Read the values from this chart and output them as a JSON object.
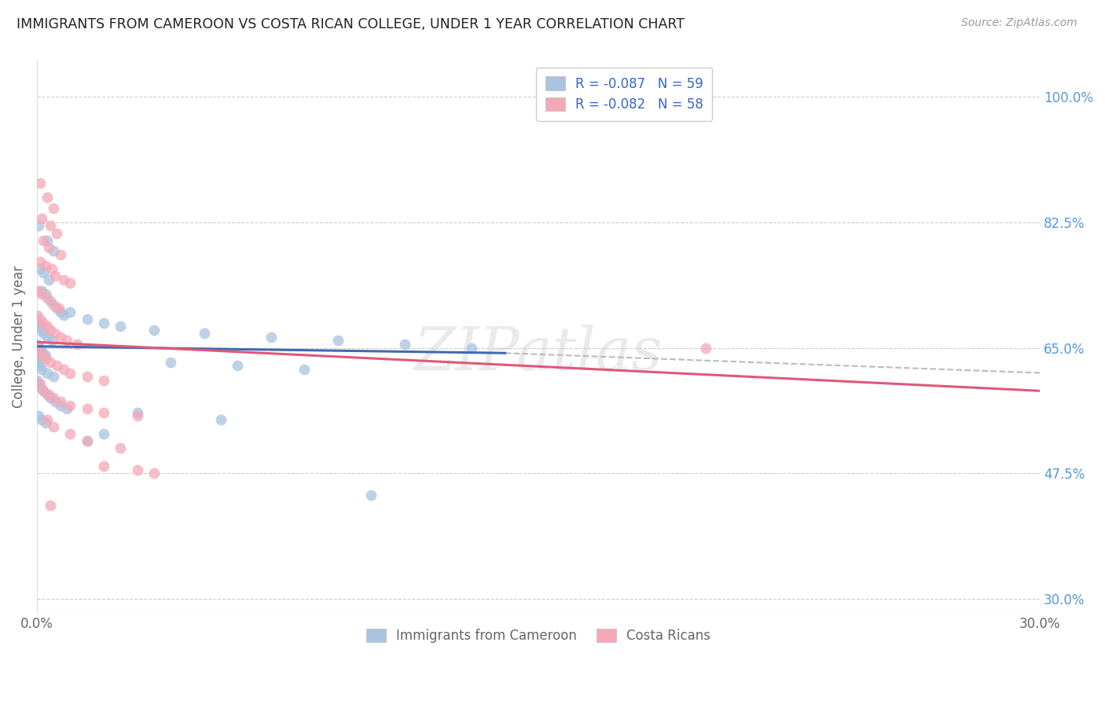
{
  "title": "IMMIGRANTS FROM CAMEROON VS COSTA RICAN COLLEGE, UNDER 1 YEAR CORRELATION CHART",
  "source": "Source: ZipAtlas.com",
  "ylabel": "College, Under 1 year",
  "right_yticks": [
    100.0,
    82.5,
    65.0,
    47.5,
    30.0
  ],
  "xlim": [
    0.0,
    30.0
  ],
  "ylim": [
    28.0,
    105.0
  ],
  "legend1_label": "R = -0.087   N = 59",
  "legend2_label": "R = -0.082   N = 58",
  "legend_bottom_label1": "Immigrants from Cameroon",
  "legend_bottom_label2": "Costa Ricans",
  "blue_color": "#a8c4e0",
  "pink_color": "#f4a8b8",
  "blue_line_color": "#4169b0",
  "pink_line_color": "#e05878",
  "trend_line_color": "#bbbbbb",
  "blue_scatter": [
    [
      0.05,
      82.0
    ],
    [
      0.3,
      80.0
    ],
    [
      0.5,
      78.5
    ],
    [
      0.1,
      76.0
    ],
    [
      0.2,
      75.5
    ],
    [
      0.35,
      74.5
    ],
    [
      0.15,
      73.0
    ],
    [
      0.25,
      72.5
    ],
    [
      0.4,
      71.5
    ],
    [
      0.6,
      70.5
    ],
    [
      0.7,
      70.0
    ],
    [
      0.8,
      69.5
    ],
    [
      0.05,
      68.5
    ],
    [
      0.1,
      68.0
    ],
    [
      0.15,
      67.5
    ],
    [
      0.2,
      67.0
    ],
    [
      0.3,
      66.5
    ],
    [
      0.45,
      66.0
    ],
    [
      0.0,
      65.5
    ],
    [
      0.05,
      65.0
    ],
    [
      0.1,
      65.0
    ],
    [
      0.15,
      64.5
    ],
    [
      0.2,
      64.0
    ],
    [
      0.25,
      64.0
    ],
    [
      0.0,
      63.5
    ],
    [
      0.05,
      63.0
    ],
    [
      0.1,
      62.5
    ],
    [
      0.15,
      62.0
    ],
    [
      0.3,
      61.5
    ],
    [
      0.5,
      61.0
    ],
    [
      0.0,
      60.5
    ],
    [
      0.05,
      60.0
    ],
    [
      0.1,
      59.5
    ],
    [
      0.2,
      59.0
    ],
    [
      0.3,
      58.5
    ],
    [
      0.4,
      58.0
    ],
    [
      0.55,
      57.5
    ],
    [
      0.7,
      57.0
    ],
    [
      0.9,
      56.5
    ],
    [
      0.05,
      55.5
    ],
    [
      0.15,
      55.0
    ],
    [
      0.25,
      54.5
    ],
    [
      1.0,
      70.0
    ],
    [
      1.5,
      69.0
    ],
    [
      2.0,
      68.5
    ],
    [
      2.5,
      68.0
    ],
    [
      3.5,
      67.5
    ],
    [
      5.0,
      67.0
    ],
    [
      7.0,
      66.5
    ],
    [
      9.0,
      66.0
    ],
    [
      11.0,
      65.5
    ],
    [
      13.0,
      65.0
    ],
    [
      4.0,
      63.0
    ],
    [
      6.0,
      62.5
    ],
    [
      8.0,
      62.0
    ],
    [
      3.0,
      56.0
    ],
    [
      5.5,
      55.0
    ],
    [
      10.0,
      44.5
    ],
    [
      2.0,
      53.0
    ],
    [
      1.5,
      52.0
    ]
  ],
  "pink_scatter": [
    [
      0.1,
      88.0
    ],
    [
      0.3,
      86.0
    ],
    [
      0.5,
      84.5
    ],
    [
      0.15,
      83.0
    ],
    [
      0.4,
      82.0
    ],
    [
      0.6,
      81.0
    ],
    [
      0.2,
      80.0
    ],
    [
      0.35,
      79.0
    ],
    [
      0.7,
      78.0
    ],
    [
      0.1,
      77.0
    ],
    [
      0.25,
      76.5
    ],
    [
      0.45,
      76.0
    ],
    [
      0.55,
      75.0
    ],
    [
      0.8,
      74.5
    ],
    [
      1.0,
      74.0
    ],
    [
      0.05,
      73.0
    ],
    [
      0.15,
      72.5
    ],
    [
      0.3,
      72.0
    ],
    [
      0.5,
      71.0
    ],
    [
      0.65,
      70.5
    ],
    [
      0.0,
      69.5
    ],
    [
      0.1,
      69.0
    ],
    [
      0.2,
      68.5
    ],
    [
      0.3,
      68.0
    ],
    [
      0.4,
      67.5
    ],
    [
      0.55,
      67.0
    ],
    [
      0.7,
      66.5
    ],
    [
      0.9,
      66.0
    ],
    [
      1.2,
      65.5
    ],
    [
      0.0,
      65.0
    ],
    [
      0.05,
      64.5
    ],
    [
      0.15,
      64.0
    ],
    [
      0.25,
      63.5
    ],
    [
      0.4,
      63.0
    ],
    [
      0.6,
      62.5
    ],
    [
      0.8,
      62.0
    ],
    [
      1.0,
      61.5
    ],
    [
      1.5,
      61.0
    ],
    [
      2.0,
      60.5
    ],
    [
      0.1,
      60.0
    ],
    [
      0.2,
      59.0
    ],
    [
      0.35,
      58.5
    ],
    [
      0.5,
      58.0
    ],
    [
      0.7,
      57.5
    ],
    [
      1.0,
      57.0
    ],
    [
      1.5,
      56.5
    ],
    [
      2.0,
      56.0
    ],
    [
      3.0,
      55.5
    ],
    [
      0.3,
      55.0
    ],
    [
      0.5,
      54.0
    ],
    [
      1.0,
      53.0
    ],
    [
      1.5,
      52.0
    ],
    [
      2.5,
      51.0
    ],
    [
      2.0,
      48.5
    ],
    [
      3.0,
      48.0
    ],
    [
      20.0,
      65.0
    ],
    [
      3.5,
      47.5
    ],
    [
      0.4,
      43.0
    ]
  ]
}
